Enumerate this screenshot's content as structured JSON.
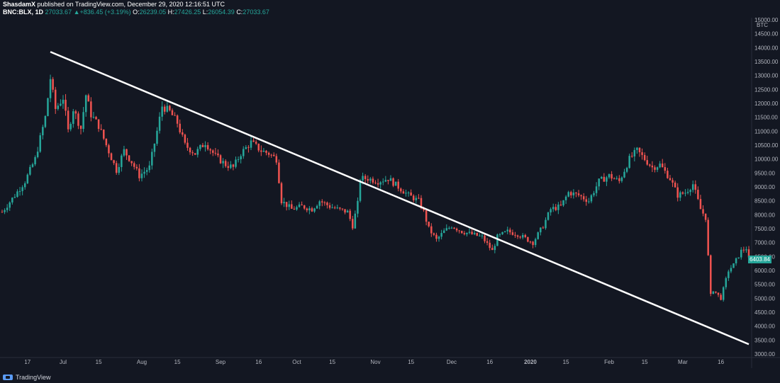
{
  "header": {
    "author": "ShasdamX",
    "published": " published on TradingView.com, December 29, 2020 12:16:51 UTC",
    "symbol": "BNC:BLX, 1D",
    "last": "27033.67",
    "change": "+836.45 (+3.19%)",
    "o_label": "O:",
    "o": "26239.05",
    "h_label": "H:",
    "h": "27426.25",
    "l_label": "L:",
    "l": "26054.39",
    "c_label": "C:",
    "c": "27033.67"
  },
  "colors": {
    "background": "#131722",
    "up": "#26a69a",
    "down": "#ef5350",
    "trendline": "#ffffff",
    "axis_text": "#b2b5be"
  },
  "branding": {
    "text": "TradingView"
  },
  "price_axis": {
    "unit": "BTC",
    "current_price_label": "6403.84"
  },
  "chart_data": {
    "type": "candlestick",
    "currency_unit": "BTC",
    "ylim": [
      3000,
      15000
    ],
    "y_ticks": [
      3000,
      3500,
      4000,
      4500,
      5000,
      5500,
      6000,
      6500,
      7000,
      7500,
      8000,
      8500,
      9000,
      9500,
      10000,
      10500,
      11000,
      11500,
      12000,
      12500,
      13000,
      13500,
      14000,
      14500,
      15000
    ],
    "x_ticks": [
      "17",
      "Jul",
      "15",
      "Aug",
      "15",
      "Sep",
      "16",
      "Oct",
      "15",
      "Nov",
      "15",
      "Dec",
      "16",
      "2020",
      "15",
      "Feb",
      "15",
      "Mar",
      "16"
    ],
    "x_range": [
      "2019-06-07",
      "2020-03-27"
    ],
    "trendline": {
      "start": {
        "date": "2019-06-26",
        "price": 13850
      },
      "end": {
        "date": "2020-03-27",
        "price": 3350
      }
    },
    "current_price": 6403.84,
    "ohlc": []
  }
}
